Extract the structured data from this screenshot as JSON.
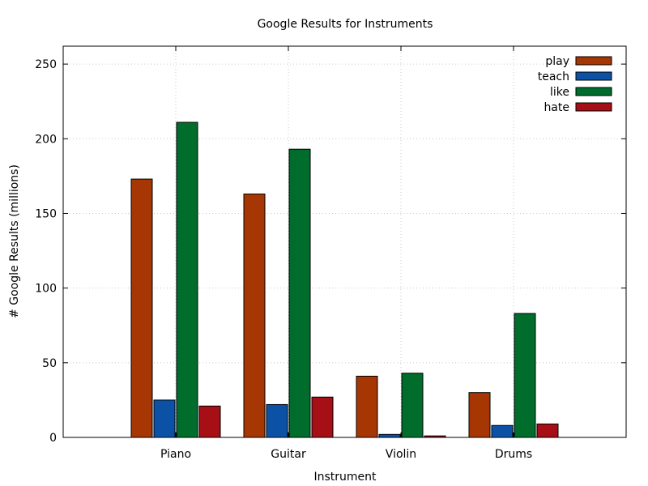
{
  "chart_data": {
    "type": "bar",
    "title": "Google Results for Instruments",
    "xlabel": "Instrument",
    "ylabel": "# Google Results (millions)",
    "categories": [
      "Piano",
      "Guitar",
      "Violin",
      "Drums"
    ],
    "series": [
      {
        "name": "play",
        "color": "#a63603",
        "values": [
          173,
          163,
          41,
          30
        ]
      },
      {
        "name": "teach",
        "color": "#0b52a6",
        "values": [
          25,
          22,
          2,
          8
        ]
      },
      {
        "name": "like",
        "color": "#006d2c",
        "values": [
          211,
          193,
          43,
          83
        ]
      },
      {
        "name": "hate",
        "color": "#a50f15",
        "values": [
          21,
          27,
          1,
          9
        ]
      }
    ],
    "ylim": [
      0,
      262
    ],
    "yticks": [
      "0",
      "50",
      "100",
      "150",
      "200",
      "250"
    ],
    "grid": true,
    "legend_position": "top-right"
  }
}
